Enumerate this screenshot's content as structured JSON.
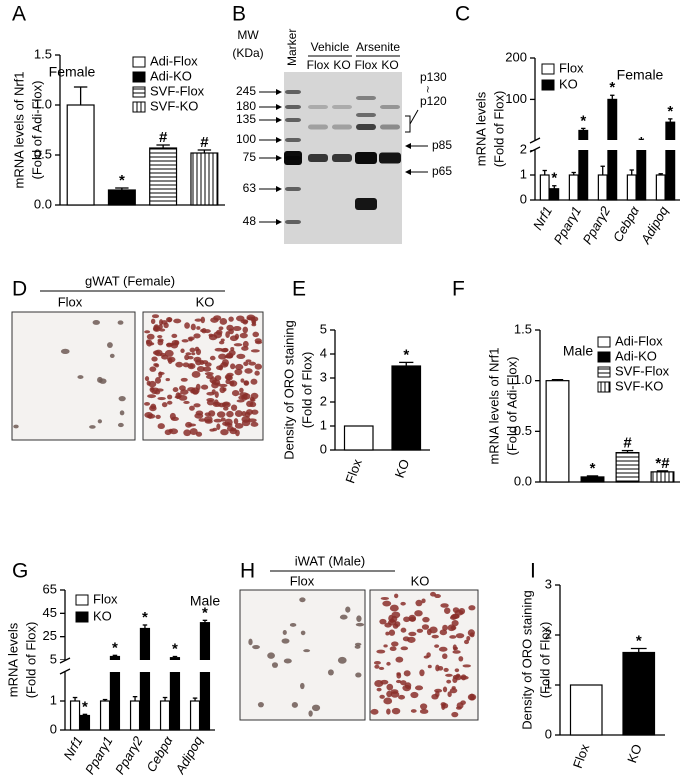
{
  "chart_data": [
    {
      "type": "bar",
      "panel": "A",
      "ylabel": [
        "mRNA levels of Nrf1",
        "(Fold of Adi-Flox)"
      ],
      "note": "Female",
      "ylim": [
        0,
        1.5
      ],
      "yticks": [
        {
          "value": 0,
          "label": "0.0"
        },
        0.5,
        {
          "value": 1,
          "label": "1.0"
        },
        1.5
      ],
      "series": [
        {
          "name": "Adi-Flox",
          "color": "#ffffff",
          "pattern": "solid",
          "values": [
            1.0
          ],
          "errors": [
            0.18
          ],
          "annotations": [
            null
          ]
        },
        {
          "name": "Adi-KO",
          "color": "#000000",
          "pattern": "solid",
          "values": [
            0.15
          ],
          "errors": [
            0.02
          ],
          "annotations": [
            "*"
          ]
        },
        {
          "name": "SVF-Flox",
          "color": "#000000",
          "pattern": "hlines",
          "values": [
            0.57
          ],
          "errors": [
            0.03
          ],
          "annotations": [
            "#"
          ]
        },
        {
          "name": "SVF-KO",
          "color": "#000000",
          "pattern": "vlines",
          "values": [
            0.52
          ],
          "errors": [
            0.03
          ],
          "annotations": [
            "#"
          ]
        }
      ]
    },
    {
      "type": "bar",
      "panel": "C",
      "ylabel": [
        "mRNA levels",
        "(Fold of Flox)"
      ],
      "note": "Female",
      "categories": [
        "Nrf1",
        "Pparγ1",
        "Pparγ2",
        "Cebpα",
        "Adipoq"
      ],
      "ylim": [
        0,
        200
      ],
      "ybreak": [
        2,
        2
      ],
      "yticks": [
        0,
        1,
        2,
        100,
        200
      ],
      "series": [
        {
          "name": "Flox",
          "color": "#ffffff",
          "values": [
            1,
            1,
            1,
            1,
            1
          ],
          "errors": [
            0.18,
            0.1,
            0.35,
            0.2,
            0.05
          ],
          "annotations": [
            null,
            null,
            null,
            null,
            null
          ]
        },
        {
          "name": "KO",
          "color": "#000000",
          "values": [
            0.45,
            25,
            100,
            2,
            45
          ],
          "errors": [
            0.12,
            5,
            10,
            null,
            8
          ],
          "annotations": [
            "*",
            "*",
            "*",
            "*",
            "*"
          ]
        }
      ]
    },
    {
      "type": "bar",
      "panel": "E",
      "ylabel": [
        "Density of ORO staining",
        "(Fold of Flox)"
      ],
      "categories": [
        "Flox",
        "KO"
      ],
      "values": [
        1,
        3.5
      ],
      "errors": [
        null,
        0.15
      ],
      "annotations": [
        null,
        "*"
      ],
      "colors": [
        "#ffffff",
        "#000000"
      ],
      "ylim": [
        0,
        5
      ],
      "yticks": [
        0,
        1,
        2,
        3,
        4,
        5
      ]
    },
    {
      "type": "bar",
      "panel": "F",
      "ylabel": [
        "mRNA levels of Nrf1",
        "(Fold of Adi-Flox)"
      ],
      "note": "Male",
      "ylim": [
        0,
        1.5
      ],
      "yticks": [
        {
          "value": 0,
          "label": "0.0"
        },
        0.5,
        {
          "value": 1,
          "label": "1.0"
        },
        1.5
      ],
      "series": [
        {
          "name": "Adi-Flox",
          "color": "#ffffff",
          "pattern": "solid",
          "values": [
            1.0
          ],
          "errors": [
            0.01
          ],
          "annotations": [
            null
          ]
        },
        {
          "name": "Adi-KO",
          "color": "#000000",
          "pattern": "solid",
          "values": [
            0.05
          ],
          "errors": [
            0.01
          ],
          "annotations": [
            "*"
          ]
        },
        {
          "name": "SVF-Flox",
          "color": "#000000",
          "pattern": "hlines",
          "values": [
            0.29
          ],
          "errors": [
            0.02
          ],
          "annotations": [
            "#"
          ]
        },
        {
          "name": "SVF-KO",
          "color": "#000000",
          "pattern": "vlines",
          "values": [
            0.1
          ],
          "errors": [
            0.01
          ],
          "annotations": [
            "*#"
          ]
        }
      ]
    },
    {
      "type": "bar",
      "panel": "G",
      "ylabel": [
        "mRNA levels",
        "(Fold of Flox)"
      ],
      "note": "Male",
      "categories": [
        "Nrf1",
        "Pparγ1",
        "Pparγ2",
        "Cebpα",
        "Adipoq"
      ],
      "ylim": [
        0,
        65
      ],
      "ybreak": [
        2,
        5
      ],
      "yticks": [
        0,
        1,
        5,
        25,
        45,
        65
      ],
      "series": [
        {
          "name": "Flox",
          "color": "#ffffff",
          "values": [
            1,
            1,
            1,
            1,
            1
          ],
          "errors": [
            0.12,
            0.05,
            0.15,
            0.12,
            0.1
          ],
          "annotations": [
            null,
            null,
            null,
            null,
            null
          ]
        },
        {
          "name": "KO",
          "color": "#000000",
          "values": [
            0.5,
            8,
            32,
            7,
            37
          ],
          "errors": [
            0.04,
            1,
            3,
            1,
            2
          ],
          "annotations": [
            "*",
            "*",
            "*",
            "*",
            "*"
          ]
        }
      ]
    },
    {
      "type": "bar",
      "panel": "I",
      "ylabel": [
        "Density of ORO staining",
        "(Fold of Flox)"
      ],
      "categories": [
        "Flox",
        "KO"
      ],
      "values": [
        1,
        1.65
      ],
      "errors": [
        null,
        0.08
      ],
      "annotations": [
        null,
        "*"
      ],
      "colors": [
        "#ffffff",
        "#000000"
      ],
      "ylim": [
        0,
        3
      ],
      "yticks": [
        0,
        1,
        2,
        3
      ]
    }
  ],
  "blot": {
    "panel": "B",
    "mw_label": [
      "MW",
      "(KDa)"
    ],
    "marker": "Marker",
    "groups": [
      "Vehicle",
      "Arsenite"
    ],
    "lanes": [
      "Flox",
      "KO",
      "Flox",
      "KO"
    ],
    "mw_markers": [
      245,
      180,
      135,
      100,
      75,
      63,
      48
    ],
    "bands": [
      "p130",
      "p120",
      "p85",
      "p65"
    ]
  },
  "micrographs": [
    {
      "panel": "D",
      "title": "gWAT (Female)",
      "labels": [
        "Flox",
        "KO"
      ]
    },
    {
      "panel": "H",
      "title": "iWAT (Male)",
      "labels": [
        "Flox",
        "KO"
      ]
    }
  ]
}
